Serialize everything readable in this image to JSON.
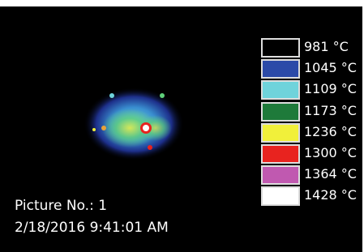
{
  "legend": {
    "items": [
      {
        "label": "981 °C",
        "color": "#000000"
      },
      {
        "label": "1045 °C",
        "color": "#2b4aa8"
      },
      {
        "label": "1109 °C",
        "color": "#6fd3db"
      },
      {
        "label": "1173 °C",
        "color": "#1e7a3a"
      },
      {
        "label": "1236 °C",
        "color": "#f1f03a"
      },
      {
        "label": "1300 °C",
        "color": "#e8231f"
      },
      {
        "label": "1364 °C",
        "color": "#c059b0"
      },
      {
        "label": "1428 °C",
        "color": "#ffffff"
      }
    ]
  },
  "picture_number": "Picture No.: 1",
  "timestamp": "2/18/2016 9:41:01 AM"
}
